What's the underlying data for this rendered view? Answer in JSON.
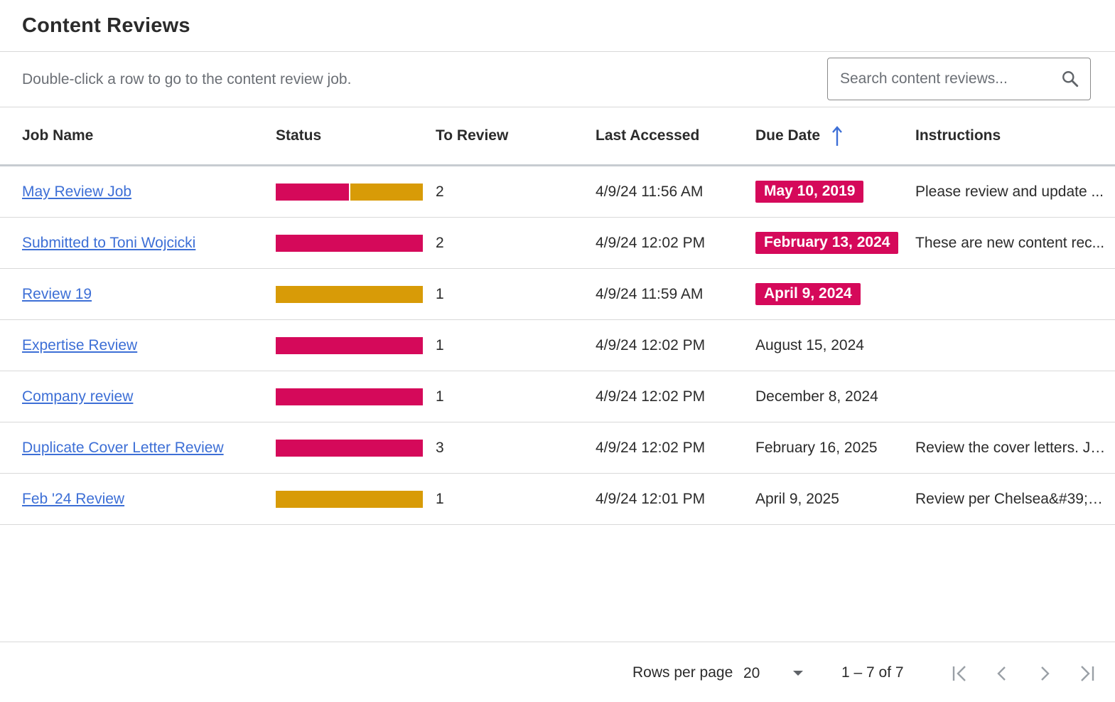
{
  "header": {
    "title": "Content Reviews"
  },
  "toolbar": {
    "hint": "Double-click a row to go to the content review job.",
    "search_placeholder": "Search content reviews..."
  },
  "table": {
    "columns": {
      "job_name": "Job Name",
      "status": "Status",
      "to_review": "To Review",
      "last_accessed": "Last Accessed",
      "due_date": "Due Date",
      "instructions": "Instructions"
    },
    "sort_icon": "arrow-up-icon",
    "rows": [
      {
        "name": "May Review Job",
        "to_review": "2",
        "last_accessed": "4/9/24 11:56 AM",
        "due_date": "May 10, 2019",
        "overdue": true,
        "instructions": "Please review and update ...",
        "status_segments": [
          {
            "color": "#d5095a",
            "fraction": 0.5
          },
          {
            "color": "#d89b07",
            "fraction": 0.5
          }
        ]
      },
      {
        "name": "Submitted to Toni Wojcicki",
        "to_review": "2",
        "last_accessed": "4/9/24 12:02 PM",
        "due_date": "February 13, 2024",
        "overdue": true,
        "instructions": "These are new content rec...",
        "status_segments": [
          {
            "color": "#d5095a",
            "fraction": 1
          }
        ]
      },
      {
        "name": "Review 19",
        "to_review": "1",
        "last_accessed": "4/9/24 11:59 AM",
        "due_date": "April 9, 2024",
        "overdue": true,
        "instructions": "",
        "status_segments": [
          {
            "color": "#d89b07",
            "fraction": 1
          }
        ]
      },
      {
        "name": "Expertise Review",
        "to_review": "1",
        "last_accessed": "4/9/24 12:02 PM",
        "due_date": "August 15, 2024",
        "overdue": false,
        "instructions": "",
        "status_segments": [
          {
            "color": "#d5095a",
            "fraction": 1
          }
        ]
      },
      {
        "name": "Company review",
        "to_review": "1",
        "last_accessed": "4/9/24 12:02 PM",
        "due_date": "December 8, 2024",
        "overdue": false,
        "instructions": "",
        "status_segments": [
          {
            "color": "#d5095a",
            "fraction": 1
          }
        ]
      },
      {
        "name": "Duplicate Cover Letter Review",
        "to_review": "3",
        "last_accessed": "4/9/24 12:02 PM",
        "due_date": "February 16, 2025",
        "overdue": false,
        "instructions": "Review the cover letters. Je...",
        "status_segments": [
          {
            "color": "#d5095a",
            "fraction": 1
          }
        ]
      },
      {
        "name": "Feb '24 Review",
        "to_review": "1",
        "last_accessed": "4/9/24 12:01 PM",
        "due_date": "April 9, 2025",
        "overdue": false,
        "instructions": "Review per Chelsea&#39;s ...",
        "status_segments": [
          {
            "color": "#d89b07",
            "fraction": 1
          }
        ]
      }
    ]
  },
  "footer": {
    "rows_per_page_label": "Rows per page",
    "rows_per_page_value": "20",
    "range": "1 – 7 of 7"
  },
  "colors": {
    "link": "#3d6fd6",
    "overdue_badge": "#d5095a",
    "status_red": "#d5095a",
    "status_gold": "#d89b07"
  }
}
